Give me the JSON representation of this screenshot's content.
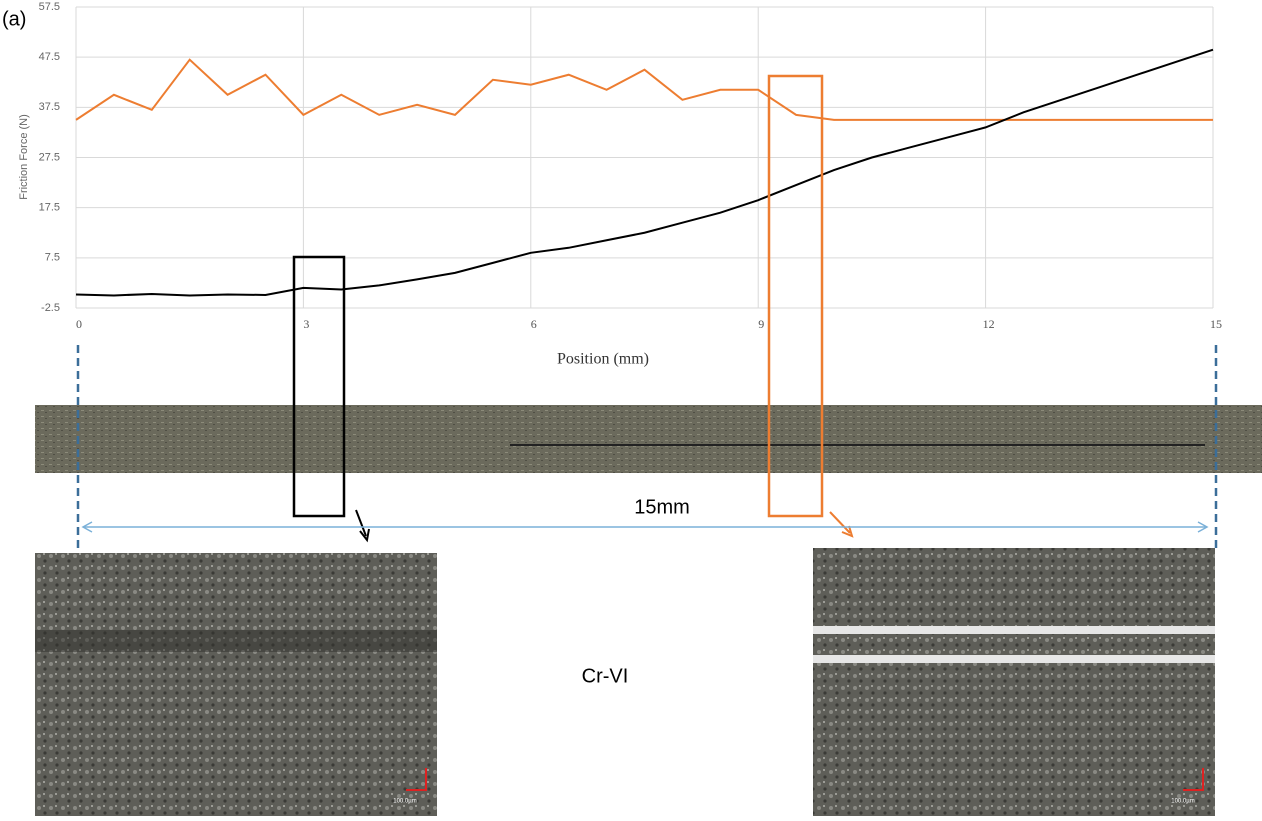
{
  "chart_data": {
    "type": "line",
    "panel_label": "(a)",
    "ylabel": "Friction Force (N)",
    "xlabel": "Position (mm)",
    "x": [
      0,
      0.5,
      1,
      1.5,
      2,
      2.5,
      3,
      3.5,
      4,
      4.5,
      5,
      5.5,
      6,
      6.5,
      7,
      7.5,
      8,
      8.5,
      9,
      9.5,
      10,
      10.5,
      11,
      11.5,
      12,
      12.5,
      13,
      13.5,
      14,
      14.5,
      15
    ],
    "series": [
      {
        "color": "#ed7d31",
        "values": [
          35,
          40,
          37,
          47,
          40,
          44,
          36,
          40,
          36,
          38,
          36,
          43,
          42,
          44,
          41,
          45,
          39,
          41,
          41,
          36,
          35,
          35,
          35,
          35,
          35,
          35,
          35,
          35,
          35,
          35,
          35
        ]
      },
      {
        "color": "#000000",
        "values": [
          0.2,
          0,
          0.3,
          0,
          0.2,
          0.1,
          1.5,
          1.2,
          2,
          3.2,
          4.5,
          6.5,
          8.5,
          9.5,
          11,
          12.5,
          14.5,
          16.5,
          19,
          22,
          25,
          27.5,
          29.5,
          31.5,
          33.5,
          36.5,
          39,
          41.5,
          44,
          46.5,
          49
        ]
      }
    ],
    "xlim": [
      0,
      15
    ],
    "xticks": [
      0,
      3,
      6,
      9,
      12,
      15
    ],
    "ylim": [
      -2.5,
      57.5
    ],
    "yticks": [
      -2.5,
      7.5,
      17.5,
      27.5,
      37.5,
      47.5,
      57.5
    ],
    "grid": true,
    "span_label": "15mm",
    "sample_label": "Cr-VI",
    "scale_bar_labels": [
      "100.0µm",
      "100.0µm"
    ]
  }
}
